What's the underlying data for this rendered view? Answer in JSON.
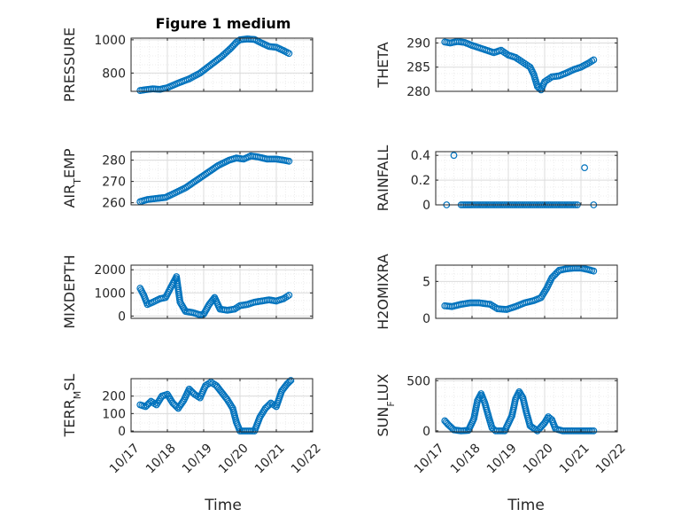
{
  "figure": {
    "title": "Figure 1 medium",
    "xlabel": "Time"
  },
  "colors": {
    "marker": "#0072BD",
    "grid": "#dcdcdc",
    "axis": "#262626"
  },
  "chart_data": [
    {
      "type": "scatter",
      "ylabel_parts": [
        "PRESSURE"
      ],
      "ylim": [
        690,
        1010
      ],
      "yticks": [
        800,
        1000
      ],
      "xlim": [
        0,
        5
      ],
      "xticks": [
        0,
        1,
        2,
        3,
        4,
        5
      ],
      "xticklabels": [],
      "grid": true,
      "legend": "none",
      "series": [
        {
          "points": [
            [
              0.25,
              695
            ],
            [
              0.4,
              700
            ],
            [
              0.6,
              705
            ],
            [
              0.8,
              702
            ],
            [
              1.0,
              712
            ],
            [
              1.3,
              740
            ],
            [
              1.6,
              765
            ],
            [
              1.9,
              800
            ],
            [
              2.2,
              850
            ],
            [
              2.5,
              900
            ],
            [
              2.75,
              950
            ],
            [
              2.9,
              985
            ],
            [
              3.0,
              1000
            ],
            [
              3.2,
              1005
            ],
            [
              3.4,
              1002
            ],
            [
              3.6,
              980
            ],
            [
              3.8,
              960
            ],
            [
              4.0,
              955
            ],
            [
              4.2,
              935
            ],
            [
              4.35,
              918
            ]
          ]
        }
      ]
    },
    {
      "type": "scatter",
      "ylabel_parts": [
        "THETA"
      ],
      "ylim": [
        280,
        291
      ],
      "yticks": [
        280,
        285,
        290
      ],
      "xlim": [
        0,
        5
      ],
      "xticks": [
        0,
        1,
        2,
        3,
        4,
        5
      ],
      "xticklabels": [],
      "grid": true,
      "legend": "none",
      "series": [
        {
          "points": [
            [
              0.25,
              290.2
            ],
            [
              0.4,
              290.0
            ],
            [
              0.6,
              290.3
            ],
            [
              0.8,
              290.1
            ],
            [
              1.0,
              289.5
            ],
            [
              1.2,
              289.0
            ],
            [
              1.4,
              288.5
            ],
            [
              1.6,
              288.0
            ],
            [
              1.8,
              288.5
            ],
            [
              2.0,
              287.5
            ],
            [
              2.2,
              287.0
            ],
            [
              2.4,
              286.0
            ],
            [
              2.6,
              285.0
            ],
            [
              2.7,
              283.5
            ],
            [
              2.8,
              281.0
            ],
            [
              2.9,
              280.3
            ],
            [
              3.0,
              282.0
            ],
            [
              3.2,
              283.0
            ],
            [
              3.4,
              283.2
            ],
            [
              3.6,
              283.8
            ],
            [
              3.8,
              284.5
            ],
            [
              4.0,
              285.0
            ],
            [
              4.2,
              285.8
            ],
            [
              4.35,
              286.5
            ]
          ]
        }
      ]
    },
    {
      "type": "scatter",
      "ylabel_parts": [
        "AIR",
        "T",
        "EMP"
      ],
      "ylim": [
        259,
        284
      ],
      "yticks": [
        260,
        270,
        280
      ],
      "xlim": [
        0,
        5
      ],
      "xticks": [
        0,
        1,
        2,
        3,
        4,
        5
      ],
      "xticklabels": [],
      "grid": true,
      "legend": "none",
      "series": [
        {
          "points": [
            [
              0.25,
              260.5
            ],
            [
              0.45,
              261.5
            ],
            [
              0.7,
              262.0
            ],
            [
              0.95,
              262.5
            ],
            [
              1.2,
              264.5
            ],
            [
              1.5,
              267.0
            ],
            [
              1.8,
              270.5
            ],
            [
              2.1,
              274.0
            ],
            [
              2.4,
              277.5
            ],
            [
              2.7,
              280.0
            ],
            [
              2.9,
              281.0
            ],
            [
              3.1,
              280.5
            ],
            [
              3.3,
              282.0
            ],
            [
              3.5,
              281.5
            ],
            [
              3.75,
              280.5
            ],
            [
              4.0,
              280.5
            ],
            [
              4.2,
              280.0
            ],
            [
              4.35,
              279.5
            ]
          ]
        }
      ]
    },
    {
      "type": "scatter",
      "ylabel_parts": [
        "RAINFALL"
      ],
      "ylim": [
        0,
        0.43
      ],
      "yticks": [
        0,
        0.2,
        0.4
      ],
      "xlim": [
        0,
        5
      ],
      "xticks": [
        0,
        1,
        2,
        3,
        4,
        5
      ],
      "xticklabels": [],
      "grid": true,
      "legend": "none",
      "series": [
        {
          "points": [
            [
              0.3,
              0
            ],
            [
              0.5,
              0.4
            ],
            [
              0.7,
              0
            ],
            [
              1.0,
              0
            ],
            [
              1.5,
              0
            ],
            [
              2.0,
              0
            ],
            [
              2.5,
              0
            ],
            [
              3.0,
              0
            ],
            [
              3.5,
              0
            ],
            [
              3.9,
              0
            ],
            [
              4.1,
              0.3
            ],
            [
              4.35,
              0
            ]
          ]
        }
      ]
    },
    {
      "type": "scatter",
      "ylabel_parts": [
        "MIXDEPTH"
      ],
      "ylim": [
        -100,
        2200
      ],
      "yticks": [
        0,
        1000,
        2000
      ],
      "xlim": [
        0,
        5
      ],
      "xticks": [
        0,
        1,
        2,
        3,
        4,
        5
      ],
      "xticklabels": [],
      "grid": true,
      "legend": "none",
      "series": [
        {
          "points": [
            [
              0.25,
              1200
            ],
            [
              0.35,
              900
            ],
            [
              0.45,
              500
            ],
            [
              0.6,
              600
            ],
            [
              0.8,
              750
            ],
            [
              0.95,
              800
            ],
            [
              1.05,
              1100
            ],
            [
              1.15,
              1400
            ],
            [
              1.25,
              1700
            ],
            [
              1.35,
              600
            ],
            [
              1.5,
              200
            ],
            [
              1.7,
              150
            ],
            [
              1.9,
              50
            ],
            [
              2.0,
              80
            ],
            [
              2.15,
              500
            ],
            [
              2.3,
              800
            ],
            [
              2.45,
              300
            ],
            [
              2.65,
              250
            ],
            [
              2.85,
              300
            ],
            [
              3.0,
              450
            ],
            [
              3.2,
              500
            ],
            [
              3.4,
              600
            ],
            [
              3.6,
              650
            ],
            [
              3.8,
              700
            ],
            [
              4.0,
              650
            ],
            [
              4.2,
              750
            ],
            [
              4.35,
              900
            ]
          ]
        }
      ]
    },
    {
      "type": "scatter",
      "ylabel_parts": [
        "H2OMIXRA"
      ],
      "ylim": [
        0,
        7.2
      ],
      "yticks": [
        0,
        5
      ],
      "xlim": [
        0,
        5
      ],
      "xticks": [
        0,
        1,
        2,
        3,
        4,
        5
      ],
      "xticklabels": [],
      "grid": true,
      "legend": "none",
      "series": [
        {
          "points": [
            [
              0.25,
              1.7
            ],
            [
              0.45,
              1.6
            ],
            [
              0.7,
              1.9
            ],
            [
              0.95,
              2.1
            ],
            [
              1.2,
              2.1
            ],
            [
              1.5,
              1.9
            ],
            [
              1.7,
              1.3
            ],
            [
              1.95,
              1.2
            ],
            [
              2.2,
              1.6
            ],
            [
              2.45,
              2.1
            ],
            [
              2.7,
              2.4
            ],
            [
              2.9,
              2.8
            ],
            [
              3.05,
              4.0
            ],
            [
              3.2,
              5.5
            ],
            [
              3.4,
              6.5
            ],
            [
              3.6,
              6.7
            ],
            [
              3.8,
              6.8
            ],
            [
              4.0,
              6.8
            ],
            [
              4.2,
              6.6
            ],
            [
              4.35,
              6.4
            ]
          ]
        }
      ]
    },
    {
      "type": "scatter",
      "ylabel_parts": [
        "TERR",
        "M",
        "SL"
      ],
      "ylim": [
        -5,
        300
      ],
      "yticks": [
        0,
        100,
        200
      ],
      "xlim": [
        0,
        5
      ],
      "xticks": [
        0,
        1,
        2,
        3,
        4,
        5
      ],
      "xticklabels": [
        "10/17",
        "10/18",
        "10/19",
        "10/20",
        "10/21",
        "10/22"
      ],
      "grid": true,
      "legend": "none",
      "series": [
        {
          "points": [
            [
              0.25,
              150
            ],
            [
              0.4,
              140
            ],
            [
              0.55,
              170
            ],
            [
              0.7,
              150
            ],
            [
              0.85,
              200
            ],
            [
              1.0,
              210
            ],
            [
              1.15,
              160
            ],
            [
              1.3,
              130
            ],
            [
              1.45,
              175
            ],
            [
              1.6,
              240
            ],
            [
              1.75,
              210
            ],
            [
              1.9,
              190
            ],
            [
              2.05,
              260
            ],
            [
              2.2,
              280
            ],
            [
              2.35,
              260
            ],
            [
              2.5,
              220
            ],
            [
              2.65,
              180
            ],
            [
              2.8,
              130
            ],
            [
              2.9,
              50
            ],
            [
              3.0,
              0
            ],
            [
              3.2,
              0
            ],
            [
              3.4,
              0
            ],
            [
              3.55,
              80
            ],
            [
              3.7,
              130
            ],
            [
              3.85,
              160
            ],
            [
              4.0,
              140
            ],
            [
              4.15,
              230
            ],
            [
              4.3,
              270
            ],
            [
              4.4,
              290
            ]
          ]
        }
      ]
    },
    {
      "type": "scatter",
      "ylabel_parts": [
        "SUN",
        "F",
        "LUX"
      ],
      "ylim": [
        -10,
        520
      ],
      "yticks": [
        0,
        500
      ],
      "xlim": [
        0,
        5
      ],
      "xticks": [
        0,
        1,
        2,
        3,
        4,
        5
      ],
      "xticklabels": [
        "10/17",
        "10/18",
        "10/19",
        "10/20",
        "10/21",
        "10/22"
      ],
      "grid": true,
      "legend": "none",
      "series": [
        {
          "points": [
            [
              0.25,
              100
            ],
            [
              0.35,
              60
            ],
            [
              0.5,
              10
            ],
            [
              0.7,
              0
            ],
            [
              0.9,
              5
            ],
            [
              1.05,
              120
            ],
            [
              1.15,
              300
            ],
            [
              1.25,
              370
            ],
            [
              1.35,
              280
            ],
            [
              1.45,
              150
            ],
            [
              1.55,
              30
            ],
            [
              1.65,
              0
            ],
            [
              1.9,
              0
            ],
            [
              2.1,
              150
            ],
            [
              2.2,
              320
            ],
            [
              2.3,
              390
            ],
            [
              2.4,
              330
            ],
            [
              2.5,
              180
            ],
            [
              2.6,
              50
            ],
            [
              2.8,
              0
            ],
            [
              3.0,
              80
            ],
            [
              3.1,
              140
            ],
            [
              3.2,
              110
            ],
            [
              3.3,
              20
            ],
            [
              3.5,
              0
            ],
            [
              3.8,
              0
            ],
            [
              4.1,
              0
            ],
            [
              4.35,
              0
            ]
          ]
        }
      ]
    }
  ]
}
